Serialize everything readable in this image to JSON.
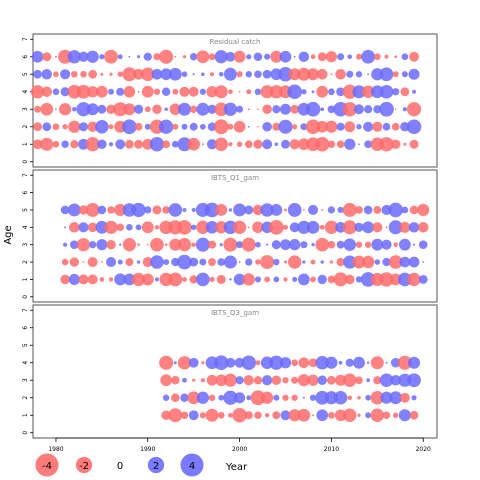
{
  "chart_data": {
    "type": "scatter",
    "encoding": "bubble",
    "ylabel": "Age",
    "xlabel": "Year",
    "xlim": [
      1977.5,
      2021.5
    ],
    "x_ticks": [
      1980,
      1990,
      2000,
      2010,
      2020
    ],
    "ylim": [
      -0.3,
      7.3
    ],
    "y_ticks": [
      0,
      1,
      2,
      3,
      4,
      5,
      6,
      7
    ],
    "grid": false,
    "colors": {
      "negative": "#ff6b6b",
      "positive": "#6b6bff",
      "frame": "#555555",
      "title": "#888888"
    },
    "legend": {
      "position": "bottom-left",
      "values": [
        -4,
        -2,
        0,
        2,
        4
      ],
      "labels": [
        "-4",
        "-2",
        "0",
        "2",
        "4"
      ]
    },
    "panels": [
      {
        "title": "Residual catch",
        "years": [
          1978,
          2019
        ],
        "ages": [
          1,
          2,
          3,
          4,
          5,
          6
        ],
        "seed": 11
      },
      {
        "title": "IBTS_Q1_gam",
        "years": [
          1981,
          2020
        ],
        "ages": [
          1,
          2,
          3,
          4,
          5
        ],
        "seed": 23
      },
      {
        "title": "IBTS_Q3_gam",
        "years": [
          1992,
          2019
        ],
        "ages": [
          1,
          2,
          3,
          4
        ],
        "seed": 37
      }
    ]
  }
}
